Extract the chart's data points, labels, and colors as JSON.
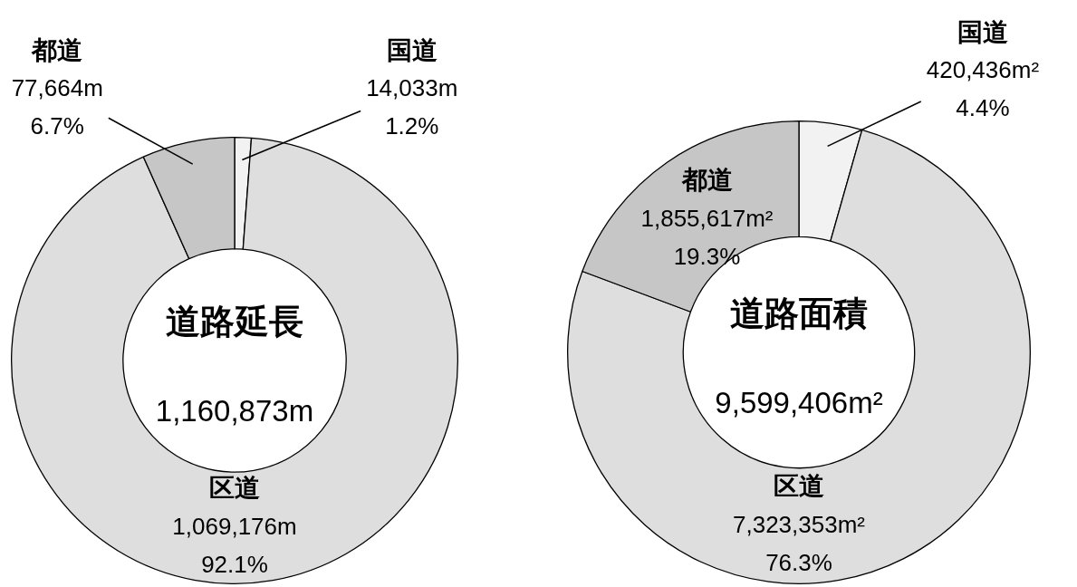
{
  "chart_data": [
    {
      "type": "donut",
      "title": "道路延長",
      "categories": [
        "国道",
        "区道",
        "都道"
      ],
      "values": [
        1.2,
        92.1,
        6.7
      ],
      "colors": [
        "#f2f2f2",
        "#dedede",
        "#c6c6c6"
      ],
      "value_labels": [
        "14,033m\n1.2%",
        "1,069,176m\n92.1%",
        "77,664m\n6.7%"
      ],
      "annotations": [
        "1,160,873m"
      ]
    },
    {
      "type": "donut",
      "title": "道路面積",
      "categories": [
        "国道",
        "区道",
        "都道"
      ],
      "values": [
        4.4,
        76.3,
        19.3
      ],
      "colors": [
        "#f2f2f2",
        "#dedede",
        "#c6c6c6"
      ],
      "value_labels": [
        "420,436m²\n4.4%",
        "7,323,353m²\n76.3%",
        "1,855,617m²\n19.3%"
      ],
      "annotations": [
        "9,599,406m²"
      ]
    }
  ]
}
